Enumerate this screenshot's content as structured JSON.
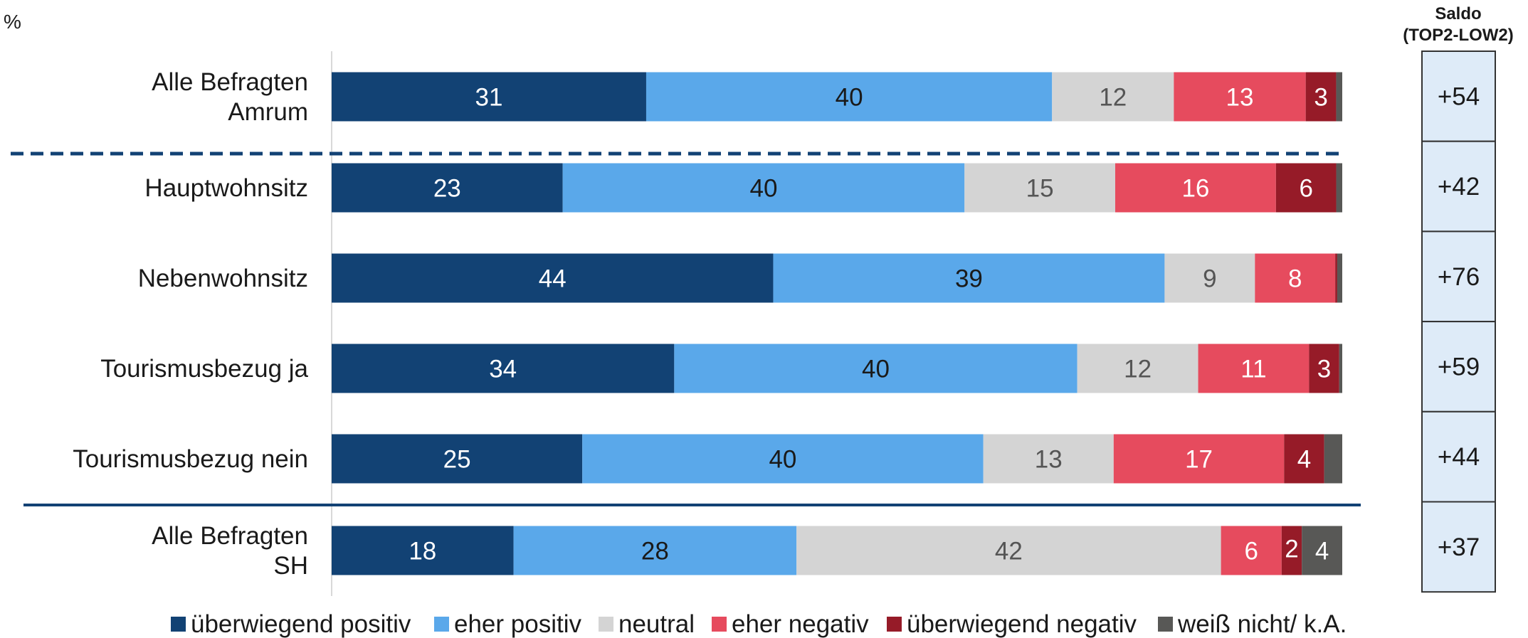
{
  "chart_data": {
    "type": "bar",
    "orientation": "horizontal",
    "stacked": true,
    "unit_label": "%",
    "xlim": [
      0,
      100
    ],
    "grid": false,
    "legend_position": "bottom",
    "categories": [
      [
        "Alle Befragten",
        "Amrum"
      ],
      [
        "Hauptwohnsitz"
      ],
      [
        "Nebenwohnsitz"
      ],
      [
        "Tourismusbezug ja"
      ],
      [
        "Tourismusbezug nein"
      ],
      [
        "Alle Befragten",
        "SH"
      ]
    ],
    "series": [
      {
        "name": "überwiegend positiv",
        "color": "#124274",
        "label_color": "#ffffff",
        "values": [
          31,
          23,
          44,
          34,
          25,
          18
        ]
      },
      {
        "name": "eher positiv",
        "color": "#5aa8ea",
        "label_color": "#1a1a1a",
        "values": [
          40,
          40,
          39,
          40,
          40,
          28
        ]
      },
      {
        "name": "neutral",
        "color": "#d4d4d4",
        "label_color": "#555555",
        "values": [
          12,
          15,
          9,
          12,
          13,
          42
        ]
      },
      {
        "name": "eher negativ",
        "color": "#e64b5e",
        "label_color": "#ffffff",
        "values": [
          13,
          16,
          8,
          11,
          17,
          6
        ]
      },
      {
        "name": "überwiegend negativ",
        "color": "#961b28",
        "label_color": "#ffffff",
        "values": [
          3,
          6,
          0.2,
          3,
          4,
          2
        ]
      },
      {
        "name": "weiß nicht/ k.A.",
        "color": "#585856",
        "label_color": "#ffffff",
        "values": [
          0.6,
          0.6,
          0.5,
          0.3,
          1.8,
          4
        ]
      }
    ],
    "segment_labels": [
      [
        "31",
        "40",
        "12",
        "13",
        "3",
        ""
      ],
      [
        "23",
        "40",
        "15",
        "16",
        "6",
        ""
      ],
      [
        "44",
        "39",
        "9",
        "8",
        "",
        ""
      ],
      [
        "34",
        "40",
        "12",
        "11",
        "3",
        ""
      ],
      [
        "25",
        "40",
        "13",
        "17",
        "4",
        ""
      ],
      [
        "18",
        "28",
        "42",
        "6",
        "2",
        "4"
      ]
    ],
    "saldo": {
      "header": [
        "Saldo",
        "(TOP2-LOW2)"
      ],
      "values": [
        "+54",
        "+42",
        "+76",
        "+59",
        "+44",
        "+37"
      ]
    }
  }
}
